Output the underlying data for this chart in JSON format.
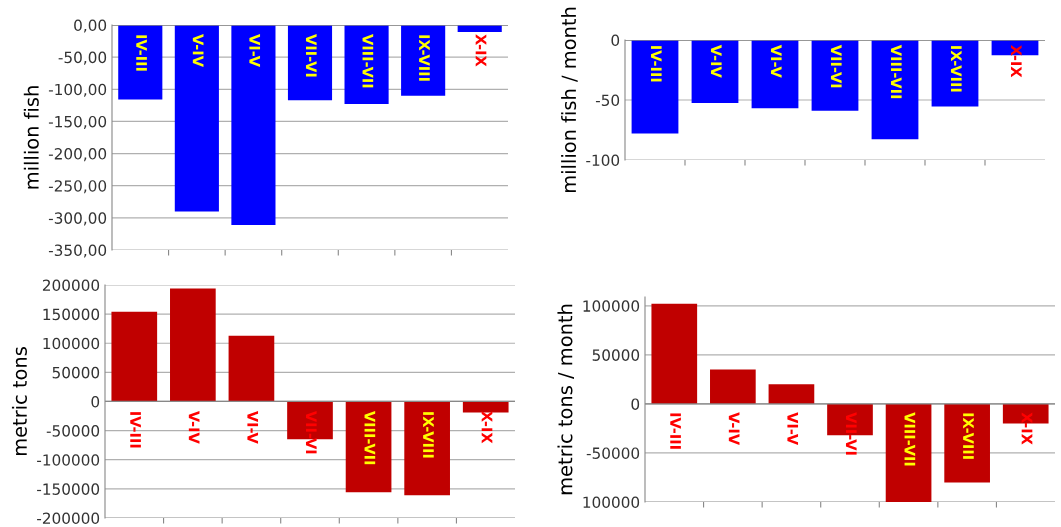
{
  "chart_data": [
    {
      "type": "bar",
      "ylabel": "million fish",
      "categories": [
        "IV-III",
        "V-IV",
        "VI-V",
        "VII-VI",
        "VIII-VII",
        "IX-VIII",
        "X-IX"
      ],
      "values": [
        -116,
        -290,
        -311,
        -117,
        -123,
        -110,
        -11
      ],
      "color": "#0000ff",
      "ylim": [
        -350,
        0
      ],
      "yticks": [
        {
          "value": 0,
          "label": "0,00"
        },
        {
          "value": -50,
          "label": "-50,00"
        },
        {
          "value": -100,
          "label": "-100,00"
        },
        {
          "value": -150,
          "label": "-150,00"
        },
        {
          "value": -200,
          "label": "-200,00"
        },
        {
          "value": -250,
          "label": "-250,00"
        },
        {
          "value": -300,
          "label": "-300,00"
        },
        {
          "value": -350,
          "label": "-350,00"
        }
      ],
      "grid": "y"
    },
    {
      "type": "bar",
      "ylabel": "million fish / month",
      "categories": [
        "IV-III",
        "V-IV",
        "VI-V",
        "VII-VI",
        "VIII-VII",
        "IX-VIII",
        "X-IX"
      ],
      "values": [
        -78,
        -52.6,
        -56.8,
        -58.9,
        -82.8,
        -55.5,
        -12.8
      ],
      "color": "#0000ff",
      "ylim": [
        -100,
        0
      ],
      "yticks": [
        0,
        -50,
        -100
      ],
      "grid": "y"
    },
    {
      "type": "bar",
      "ylabel": "metric tons",
      "categories": [
        "IV-III",
        "V-IV",
        "VI-V",
        "VII-VI",
        "VIII-VII",
        "IX-VIII",
        "X-IX"
      ],
      "values": [
        154000,
        194000,
        113000,
        -65000,
        -156000,
        -161000,
        -19000
      ],
      "color": "#c00000",
      "ylim": [
        -200000,
        200000
      ],
      "yticks": [
        200000,
        150000,
        100000,
        50000,
        0,
        -50000,
        -100000,
        -150000,
        -200000
      ],
      "grid": "y"
    },
    {
      "type": "bar",
      "ylabel": "metric tons / month",
      "categories": [
        "IV-III",
        "V-IV",
        "VI-V",
        "VII-VI",
        "VIII-VII",
        "IX-VIII",
        "X-IX"
      ],
      "values": [
        102000,
        35000,
        20000,
        -32000,
        -100000,
        -80000,
        -20000
      ],
      "color": "#c00000",
      "ylim": [
        -100000,
        109000
      ],
      "yticks": [
        100000,
        50000,
        0,
        -50000,
        {
          "value": -100000,
          "label": "100000"
        }
      ],
      "grid": "y"
    }
  ]
}
